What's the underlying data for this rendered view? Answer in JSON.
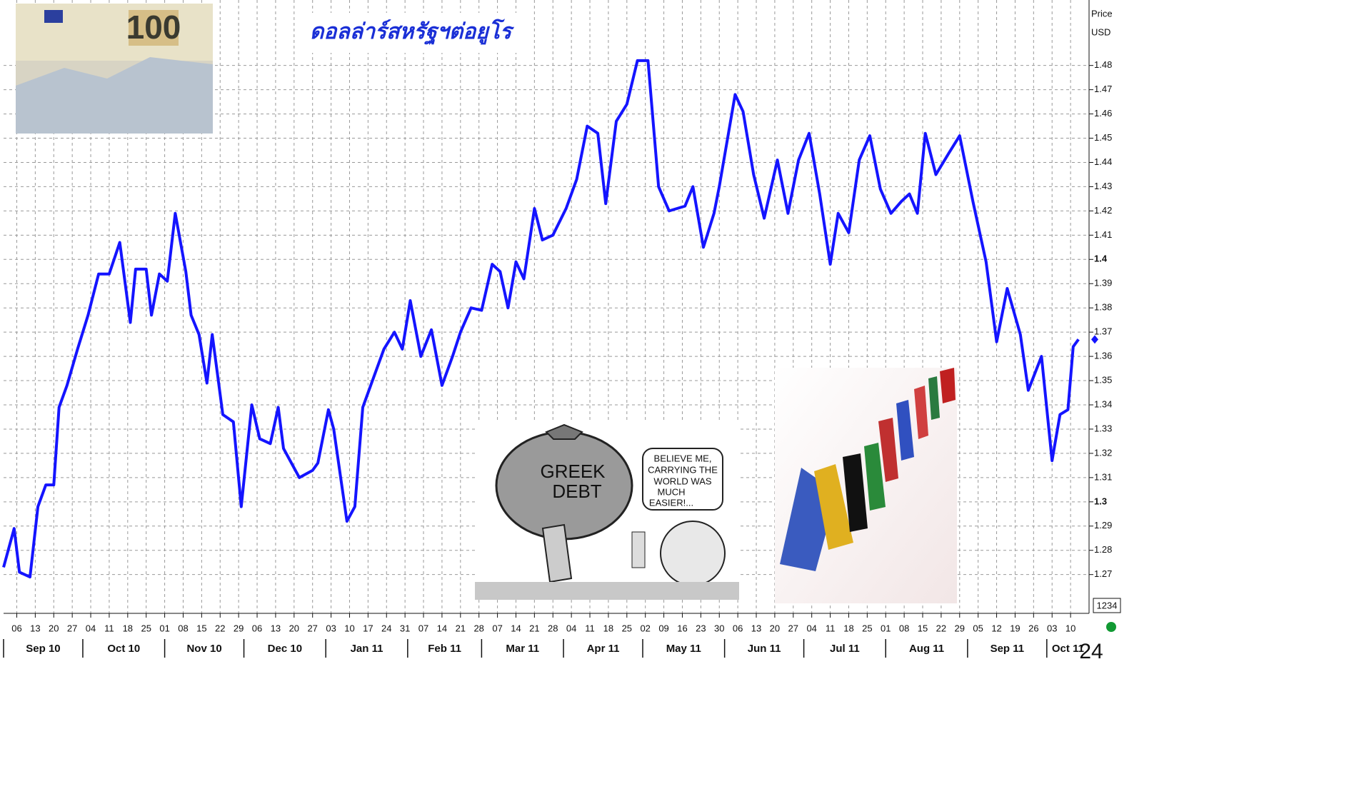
{
  "chart_data": {
    "type": "line",
    "title": "ดอลล่าร์สหรัฐฯต่อยูโร",
    "y_label_lines": [
      "Price",
      "USD"
    ],
    "price_box_label": "1234",
    "x": [
      "2010-09-01",
      "2010-09-05",
      "2010-09-07",
      "2010-09-11",
      "2010-09-14",
      "2010-09-17",
      "2010-09-20",
      "2010-09-22",
      "2010-09-25",
      "2010-09-29",
      "2010-10-03",
      "2010-10-07",
      "2010-10-11",
      "2010-10-15",
      "2010-10-19",
      "2010-10-21",
      "2010-10-25",
      "2010-10-27",
      "2010-10-30",
      "2010-11-02",
      "2010-11-05",
      "2010-11-09",
      "2010-11-11",
      "2010-11-14",
      "2010-11-17",
      "2010-11-19",
      "2010-11-23",
      "2010-11-27",
      "2010-11-30",
      "2010-12-04",
      "2010-12-07",
      "2010-12-11",
      "2010-12-14",
      "2010-12-16",
      "2010-12-22",
      "2010-12-27",
      "2010-12-29",
      "2011-01-02",
      "2011-01-04",
      "2011-01-09",
      "2011-01-12",
      "2011-01-15",
      "2011-01-18",
      "2011-01-23",
      "2011-01-27",
      "2011-01-30",
      "2011-02-02",
      "2011-02-06",
      "2011-02-10",
      "2011-02-14",
      "2011-02-18",
      "2011-02-21",
      "2011-02-25",
      "2011-03-01",
      "2011-03-05",
      "2011-03-08",
      "2011-03-11",
      "2011-03-14",
      "2011-03-17",
      "2011-03-21",
      "2011-03-24",
      "2011-03-28",
      "2011-04-02",
      "2011-04-06",
      "2011-04-10",
      "2011-04-14",
      "2011-04-17",
      "2011-04-21",
      "2011-04-25",
      "2011-04-29",
      "2011-05-03",
      "2011-05-07",
      "2011-05-11",
      "2011-05-17",
      "2011-05-20",
      "2011-05-24",
      "2011-05-28",
      "2011-05-30",
      "2011-06-05",
      "2011-06-08",
      "2011-06-12",
      "2011-06-16",
      "2011-06-21",
      "2011-06-25",
      "2011-06-29",
      "2011-07-03",
      "2011-07-07",
      "2011-07-11",
      "2011-07-14",
      "2011-07-18",
      "2011-07-22",
      "2011-07-26",
      "2011-07-30",
      "2011-08-03",
      "2011-08-07",
      "2011-08-10",
      "2011-08-13",
      "2011-08-16",
      "2011-08-20",
      "2011-08-25",
      "2011-08-29",
      "2011-09-03",
      "2011-09-08",
      "2011-09-12",
      "2011-09-16",
      "2011-09-21",
      "2011-09-24",
      "2011-09-29",
      "2011-10-03",
      "2011-10-06",
      "2011-10-09",
      "2011-10-11",
      "2011-10-13"
    ],
    "series": [
      {
        "color": "#1414ff",
        "values": [
          1.273,
          1.289,
          1.271,
          1.269,
          1.298,
          1.307,
          1.307,
          1.339,
          1.348,
          1.363,
          1.377,
          1.394,
          1.394,
          1.407,
          1.374,
          1.396,
          1.396,
          1.377,
          1.394,
          1.391,
          1.419,
          1.395,
          1.377,
          1.369,
          1.349,
          1.369,
          1.336,
          1.333,
          1.298,
          1.34,
          1.326,
          1.324,
          1.339,
          1.322,
          1.31,
          1.313,
          1.316,
          1.338,
          1.33,
          1.292,
          1.298,
          1.339,
          1.348,
          1.363,
          1.37,
          1.363,
          1.383,
          1.36,
          1.371,
          1.348,
          1.36,
          1.37,
          1.38,
          1.379,
          1.398,
          1.395,
          1.38,
          1.399,
          1.392,
          1.421,
          1.408,
          1.41,
          1.421,
          1.433,
          1.455,
          1.452,
          1.423,
          1.457,
          1.464,
          1.482,
          1.482,
          1.43,
          1.42,
          1.422,
          1.43,
          1.405,
          1.419,
          1.43,
          1.468,
          1.461,
          1.435,
          1.417,
          1.441,
          1.419,
          1.441,
          1.452,
          1.427,
          1.398,
          1.419,
          1.411,
          1.441,
          1.451,
          1.429,
          1.419,
          1.424,
          1.427,
          1.419,
          1.452,
          1.435,
          1.444,
          1.451,
          1.424,
          1.399,
          1.366,
          1.388,
          1.369,
          1.346,
          1.36,
          1.317,
          1.336,
          1.338,
          1.364,
          1.367
        ]
      }
    ],
    "xlim": [
      "2010-09-01",
      "2011-10-17"
    ],
    "ylim": [
      1.254,
      1.507
    ],
    "yticks": [
      1.27,
      1.28,
      1.29,
      1.3,
      1.31,
      1.32,
      1.33,
      1.34,
      1.35,
      1.36,
      1.37,
      1.38,
      1.39,
      1.4,
      1.41,
      1.42,
      1.43,
      1.44,
      1.45,
      1.46,
      1.47,
      1.48
    ],
    "xticks": [
      {
        "value": "2010-09-06",
        "label": "06"
      },
      {
        "value": "2010-09-13",
        "label": "13"
      },
      {
        "value": "2010-09-20",
        "label": "20"
      },
      {
        "value": "2010-09-27",
        "label": "27"
      },
      {
        "value": "2010-10-04",
        "label": "04"
      },
      {
        "value": "2010-10-11",
        "label": "11"
      },
      {
        "value": "2010-10-18",
        "label": "18"
      },
      {
        "value": "2010-10-25",
        "label": "25"
      },
      {
        "value": "2010-11-01",
        "label": "01"
      },
      {
        "value": "2010-11-08",
        "label": "08"
      },
      {
        "value": "2010-11-15",
        "label": "15"
      },
      {
        "value": "2010-11-22",
        "label": "22"
      },
      {
        "value": "2010-11-29",
        "label": "29"
      },
      {
        "value": "2010-12-06",
        "label": "06"
      },
      {
        "value": "2010-12-13",
        "label": "13"
      },
      {
        "value": "2010-12-20",
        "label": "20"
      },
      {
        "value": "2010-12-27",
        "label": "27"
      },
      {
        "value": "2011-01-03",
        "label": "03"
      },
      {
        "value": "2011-01-10",
        "label": "10"
      },
      {
        "value": "2011-01-17",
        "label": "17"
      },
      {
        "value": "2011-01-24",
        "label": "24"
      },
      {
        "value": "2011-01-31",
        "label": "31"
      },
      {
        "value": "2011-02-07",
        "label": "07"
      },
      {
        "value": "2011-02-14",
        "label": "14"
      },
      {
        "value": "2011-02-21",
        "label": "21"
      },
      {
        "value": "2011-02-28",
        "label": "28"
      },
      {
        "value": "2011-03-07",
        "label": "07"
      },
      {
        "value": "2011-03-14",
        "label": "14"
      },
      {
        "value": "2011-03-21",
        "label": "21"
      },
      {
        "value": "2011-03-28",
        "label": "28"
      },
      {
        "value": "2011-04-04",
        "label": "04"
      },
      {
        "value": "2011-04-11",
        "label": "11"
      },
      {
        "value": "2011-04-18",
        "label": "18"
      },
      {
        "value": "2011-04-25",
        "label": "25"
      },
      {
        "value": "2011-05-02",
        "label": "02"
      },
      {
        "value": "2011-05-09",
        "label": "09"
      },
      {
        "value": "2011-05-16",
        "label": "16"
      },
      {
        "value": "2011-05-23",
        "label": "23"
      },
      {
        "value": "2011-05-30",
        "label": "30"
      },
      {
        "value": "2011-06-06",
        "label": "06"
      },
      {
        "value": "2011-06-13",
        "label": "13"
      },
      {
        "value": "2011-06-20",
        "label": "20"
      },
      {
        "value": "2011-06-27",
        "label": "27"
      },
      {
        "value": "2011-07-04",
        "label": "04"
      },
      {
        "value": "2011-07-11",
        "label": "11"
      },
      {
        "value": "2011-07-18",
        "label": "18"
      },
      {
        "value": "2011-07-25",
        "label": "25"
      },
      {
        "value": "2011-08-01",
        "label": "01"
      },
      {
        "value": "2011-08-08",
        "label": "08"
      },
      {
        "value": "2011-08-15",
        "label": "15"
      },
      {
        "value": "2011-08-22",
        "label": "22"
      },
      {
        "value": "2011-08-29",
        "label": "29"
      },
      {
        "value": "2011-09-05",
        "label": "05"
      },
      {
        "value": "2011-09-12",
        "label": "12"
      },
      {
        "value": "2011-09-19",
        "label": "19"
      },
      {
        "value": "2011-09-26",
        "label": "26"
      },
      {
        "value": "2011-10-03",
        "label": "03"
      },
      {
        "value": "2011-10-10",
        "label": "10"
      }
    ],
    "month_ticks": [
      {
        "value": "2010-09-01",
        "label": "Sep 10"
      },
      {
        "value": "2010-10-01",
        "label": "Oct 10"
      },
      {
        "value": "2010-11-01",
        "label": "Nov 10"
      },
      {
        "value": "2010-12-01",
        "label": "Dec 10"
      },
      {
        "value": "2011-01-01",
        "label": "Jan 11"
      },
      {
        "value": "2011-02-01",
        "label": "Feb 11"
      },
      {
        "value": "2011-03-01",
        "label": "Mar 11"
      },
      {
        "value": "2011-04-01",
        "label": "Apr 11"
      },
      {
        "value": "2011-05-01",
        "label": "May 11"
      },
      {
        "value": "2011-06-01",
        "label": "Jun 11"
      },
      {
        "value": "2011-07-01",
        "label": "Jul 11"
      },
      {
        "value": "2011-08-01",
        "label": "Aug 11"
      },
      {
        "value": "2011-09-01",
        "label": "Sep 11"
      },
      {
        "value": "2011-10-01",
        "label": "Oct 11"
      }
    ],
    "grid": true
  },
  "images": {
    "banknote_value": "100",
    "cartoon": {
      "sack_lines": [
        "GREEK",
        "DEBT"
      ],
      "speech_lines": [
        "BELIEVE ME,",
        "CARRYING THE",
        "WORLD WAS",
        "MUCH",
        "EASIER!..."
      ]
    }
  },
  "page_number": "24"
}
